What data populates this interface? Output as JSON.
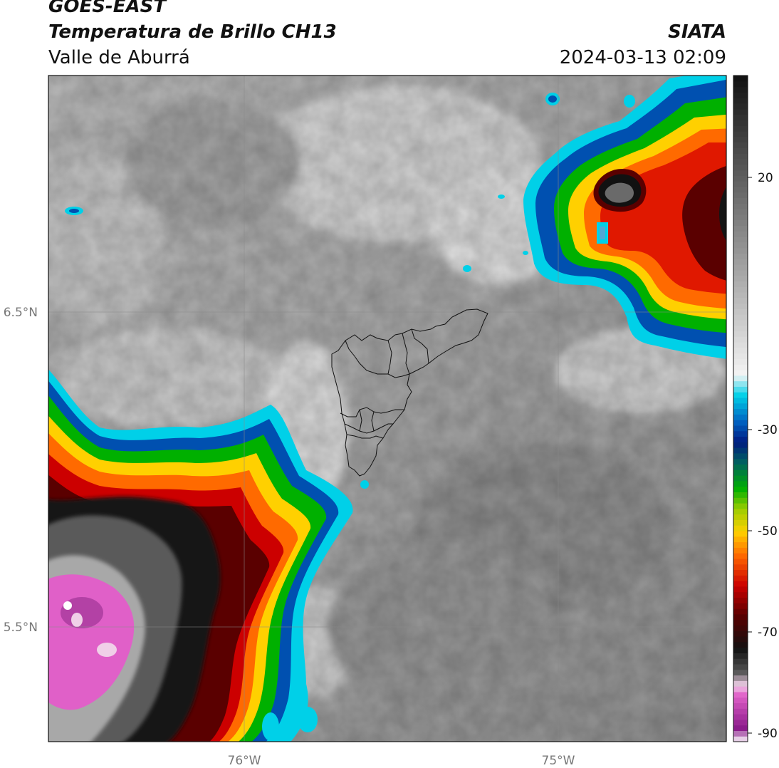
{
  "header": {
    "satellite": "GOES-EAST",
    "product": "Temperatura de Brillo CH13",
    "region": "Valle de Aburrá",
    "agency": "SIATA",
    "datetime": "2024-03-13 02:09"
  },
  "map": {
    "lat_labels": [
      "6.5°N",
      "5.5°N"
    ],
    "lon_labels": [
      "76°W",
      "75°W"
    ]
  },
  "colorbar": {
    "ticks": [
      "20",
      "-30",
      "-50",
      "-70",
      "-90"
    ],
    "range": [
      -93,
      40
    ],
    "colors": [
      "#ffffff",
      "#8a1a8a",
      "#e060c8",
      "#f0d0e8",
      "#555555",
      "#111111",
      "#5a0000",
      "#cc0000",
      "#ff6a00",
      "#ffd000",
      "#9acd00",
      "#00b000",
      "#006060",
      "#001a80",
      "#0060c0",
      "#00d0e8",
      "#f4f4f4",
      "#808080",
      "#111111"
    ]
  }
}
